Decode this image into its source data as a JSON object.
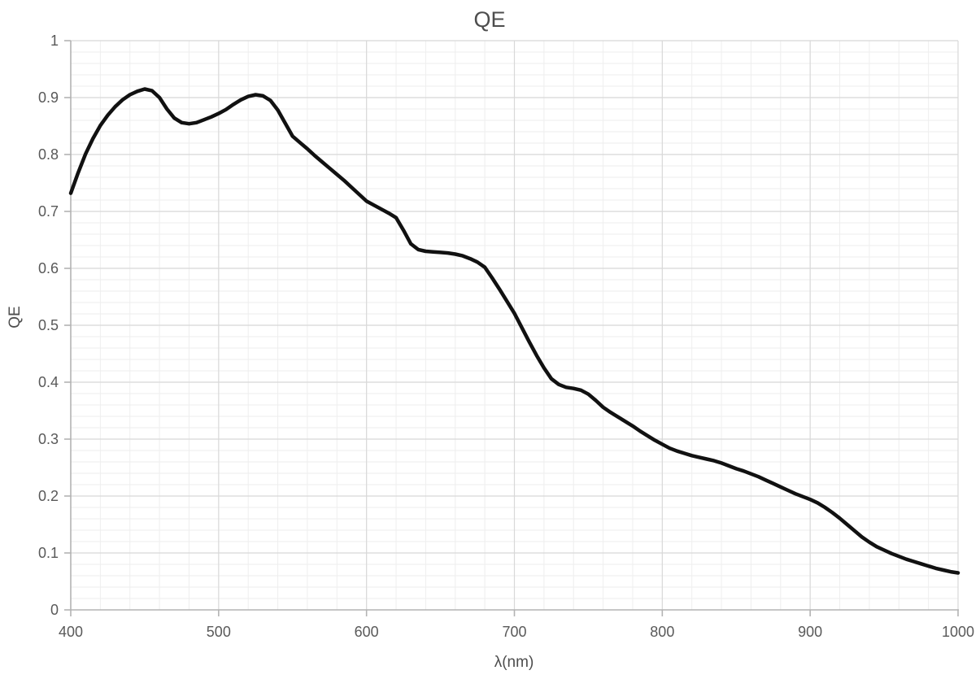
{
  "chart_data": {
    "type": "line",
    "title": "QE",
    "xlabel": "λ(nm)",
    "ylabel": "QE",
    "xlim": [
      400,
      1000
    ],
    "ylim": [
      0,
      1
    ],
    "x_major": 100,
    "x_minor": 20,
    "y_major": 0.1,
    "y_minor": 0.02,
    "x_ticks": [
      "400",
      "500",
      "600",
      "700",
      "800",
      "900",
      "1000"
    ],
    "y_ticks": [
      "0",
      "0.1",
      "0.2",
      "0.3",
      "0.4",
      "0.5",
      "0.6",
      "0.7",
      "0.8",
      "0.9",
      "1"
    ],
    "grid": true,
    "legend": "none",
    "colors": {
      "line": "#111111",
      "grid_minor": "#eeeeee",
      "grid_major": "#d8d8d8",
      "axis": "#b3b3b3",
      "text": "#595959"
    },
    "series": [
      {
        "name": "QE",
        "x_start": 400,
        "x_step": 5,
        "values": [
          0.732,
          0.768,
          0.801,
          0.828,
          0.851,
          0.869,
          0.884,
          0.896,
          0.905,
          0.911,
          0.915,
          0.912,
          0.9,
          0.88,
          0.864,
          0.856,
          0.854,
          0.856,
          0.861,
          0.866,
          0.872,
          0.879,
          0.888,
          0.896,
          0.902,
          0.905,
          0.903,
          0.895,
          0.878,
          0.855,
          0.832,
          0.821,
          0.81,
          0.798,
          0.787,
          0.776,
          0.765,
          0.754,
          0.742,
          0.73,
          0.718,
          0.711,
          0.704,
          0.697,
          0.689,
          0.667,
          0.643,
          0.633,
          0.63,
          0.629,
          0.628,
          0.627,
          0.625,
          0.622,
          0.617,
          0.611,
          0.602,
          0.583,
          0.563,
          0.542,
          0.521,
          0.496,
          0.471,
          0.447,
          0.425,
          0.406,
          0.396,
          0.391,
          0.389,
          0.386,
          0.379,
          0.368,
          0.356,
          0.347,
          0.339,
          0.331,
          0.323,
          0.314,
          0.306,
          0.298,
          0.291,
          0.284,
          0.279,
          0.275,
          0.271,
          0.268,
          0.265,
          0.262,
          0.258,
          0.253,
          0.248,
          0.244,
          0.239,
          0.234,
          0.228,
          0.222,
          0.216,
          0.21,
          0.204,
          0.199,
          0.194,
          0.188,
          0.18,
          0.171,
          0.161,
          0.15,
          0.139,
          0.128,
          0.119,
          0.111,
          0.105,
          0.099,
          0.094,
          0.089,
          0.085,
          0.081,
          0.077,
          0.073,
          0.07,
          0.067,
          0.065
        ]
      }
    ]
  }
}
